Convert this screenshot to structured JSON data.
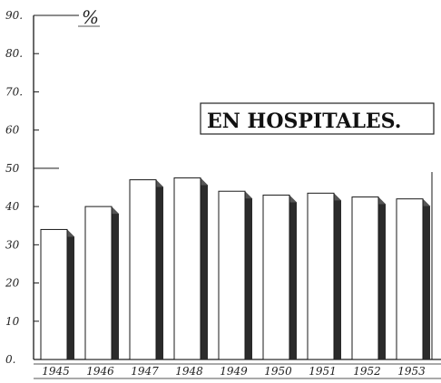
{
  "chart_data": {
    "type": "bar",
    "title": "EN HOSPITALES.",
    "unit_label": "%",
    "categories": [
      "1945",
      "1946",
      "1947",
      "1948",
      "1949",
      "1950",
      "1951",
      "1952",
      "1953"
    ],
    "values": [
      34,
      40,
      47,
      47.5,
      44,
      43,
      43.5,
      42.5,
      42
    ],
    "ylim": [
      0,
      90
    ],
    "yticks": [
      0,
      10,
      20,
      30,
      40,
      50,
      60,
      70,
      80,
      90
    ],
    "ytick_labels": [
      "0.",
      "10",
      "20",
      "30",
      "40",
      "50",
      "60",
      "70.",
      "80.",
      "90."
    ],
    "xlabel": "",
    "ylabel": "",
    "grid": false,
    "legend": "none",
    "bar_style": "3d",
    "colors": {
      "bar_face": "#ffffff",
      "bar_shadow": "#2b2b2b",
      "ink": "#1a1a1a"
    }
  }
}
